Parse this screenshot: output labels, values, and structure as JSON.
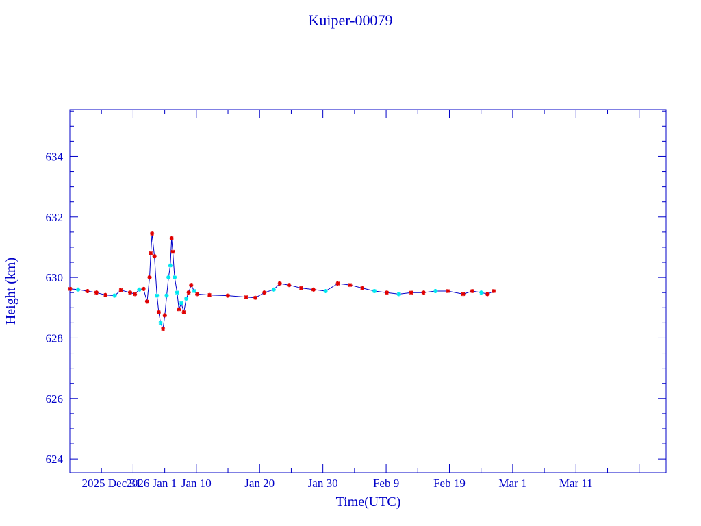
{
  "chart_data": {
    "type": "line",
    "title": "Kuiper-00079",
    "xlabel": "Time(UTC)",
    "ylabel": "Height (km)",
    "x_units": "days since 2025 Dec 31",
    "xlim": [
      -10,
      84.25
    ],
    "ylim": [
      623.55,
      635.55
    ],
    "x_ticks": [
      {
        "value": 0,
        "label": "2025 Dec 31"
      },
      {
        "value": 1,
        "label": "2026 Jan 1"
      },
      {
        "value": 10,
        "label": "Jan 10"
      },
      {
        "value": 20,
        "label": "Jan 20"
      },
      {
        "value": 30,
        "label": "Jan 30"
      },
      {
        "value": 40,
        "label": "Feb  9"
      },
      {
        "value": 50,
        "label": "Feb 19"
      },
      {
        "value": 60,
        "label": "Mar  1"
      },
      {
        "value": 70,
        "label": "Mar 11"
      }
    ],
    "y_ticks": [
      624,
      626,
      628,
      630,
      632,
      634
    ],
    "grid": false,
    "colors": {
      "axis": "#0000c8",
      "line": "#0000c8",
      "marker_a": "#e00000",
      "marker_b": "#00e8f0"
    },
    "series": [
      {
        "name": "Height",
        "points": [
          [
            -9.95,
            629.62,
            "a"
          ],
          [
            -8.7,
            629.6,
            "b"
          ],
          [
            -7.25,
            629.55,
            "a"
          ],
          [
            -5.8,
            629.5,
            "a"
          ],
          [
            -4.35,
            629.42,
            "a"
          ],
          [
            -2.9,
            629.4,
            "b"
          ],
          [
            -1.93,
            629.58,
            "a"
          ],
          [
            -0.48,
            629.5,
            "a"
          ],
          [
            0.29,
            629.45,
            "a"
          ],
          [
            0.97,
            629.6,
            "b"
          ],
          [
            1.64,
            629.62,
            "a"
          ],
          [
            2.22,
            629.2,
            "a"
          ],
          [
            2.61,
            630.0,
            "a"
          ],
          [
            2.8,
            630.8,
            "a"
          ],
          [
            3.0,
            631.45,
            "a"
          ],
          [
            3.38,
            630.7,
            "a"
          ],
          [
            3.77,
            629.4,
            "b"
          ],
          [
            4.06,
            628.85,
            "a"
          ],
          [
            4.35,
            628.5,
            "b"
          ],
          [
            4.73,
            628.3,
            "a"
          ],
          [
            5.02,
            628.75,
            "a"
          ],
          [
            5.31,
            629.4,
            "b"
          ],
          [
            5.6,
            630.0,
            "b"
          ],
          [
            5.89,
            630.4,
            "b"
          ],
          [
            6.09,
            631.3,
            "a"
          ],
          [
            6.28,
            630.85,
            "a"
          ],
          [
            6.57,
            630.0,
            "b"
          ],
          [
            6.96,
            629.5,
            "b"
          ],
          [
            7.25,
            628.95,
            "a"
          ],
          [
            7.63,
            629.15,
            "b"
          ],
          [
            8.02,
            628.85,
            "a"
          ],
          [
            8.41,
            629.3,
            "b"
          ],
          [
            8.79,
            629.5,
            "a"
          ],
          [
            9.18,
            629.75,
            "a"
          ],
          [
            9.66,
            629.55,
            "b"
          ],
          [
            10.14,
            629.45,
            "a"
          ],
          [
            12.08,
            629.42,
            "a"
          ],
          [
            14.98,
            629.4,
            "a"
          ],
          [
            17.87,
            629.35,
            "a"
          ],
          [
            19.32,
            629.33,
            "a"
          ],
          [
            20.77,
            629.5,
            "a"
          ],
          [
            22.22,
            629.6,
            "b"
          ],
          [
            23.19,
            629.8,
            "a"
          ],
          [
            24.64,
            629.75,
            "a"
          ],
          [
            26.57,
            629.65,
            "a"
          ],
          [
            28.5,
            629.6,
            "a"
          ],
          [
            30.43,
            629.55,
            "b"
          ],
          [
            32.37,
            629.8,
            "a"
          ],
          [
            34.3,
            629.75,
            "a"
          ],
          [
            36.23,
            629.65,
            "a"
          ],
          [
            38.16,
            629.55,
            "b"
          ],
          [
            40.1,
            629.5,
            "a"
          ],
          [
            42.03,
            629.45,
            "b"
          ],
          [
            43.96,
            629.5,
            "a"
          ],
          [
            45.89,
            629.5,
            "a"
          ],
          [
            47.83,
            629.55,
            "b"
          ],
          [
            49.76,
            629.55,
            "a"
          ],
          [
            52.17,
            629.45,
            "a"
          ],
          [
            53.62,
            629.55,
            "a"
          ],
          [
            55.07,
            629.5,
            "b"
          ],
          [
            56.04,
            629.45,
            "a"
          ],
          [
            57.0,
            629.55,
            "a"
          ]
        ]
      }
    ]
  }
}
